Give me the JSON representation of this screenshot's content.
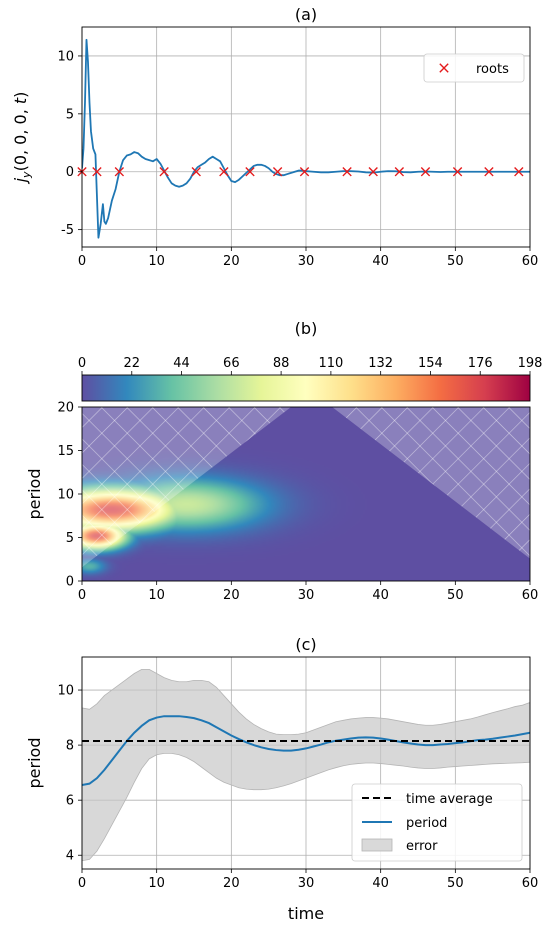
{
  "chart_data": [
    {
      "id": "a",
      "type": "line",
      "title": "(a)",
      "xlabel": "",
      "ylabel": "j_y(0, 0, 0, t)",
      "xlim": [
        0,
        60
      ],
      "ylim": [
        -6.5,
        12.5
      ],
      "xticks": [
        0,
        10,
        20,
        30,
        40,
        50,
        60
      ],
      "yticks": [
        -5,
        0,
        5,
        10
      ],
      "grid": true,
      "legend": {
        "position": "top-right",
        "entries": [
          {
            "label": "roots",
            "marker": "x",
            "color": "#e41a1c"
          }
        ]
      },
      "series": [
        {
          "color": "#1f77b4",
          "x": [
            0,
            0.2,
            0.4,
            0.6,
            0.8,
            1.0,
            1.2,
            1.5,
            1.8,
            2.2,
            2.5,
            2.8,
            3.0,
            3.2,
            3.5,
            4.0,
            4.5,
            5.0,
            5.5,
            6.0,
            6.5,
            7.0,
            7.5,
            8.0,
            8.5,
            9.0,
            9.5,
            10.0,
            10.5,
            11.0,
            11.5,
            12.0,
            12.5,
            13.0,
            13.5,
            14.0,
            14.5,
            15.0,
            15.5,
            16.0,
            16.5,
            17.0,
            17.5,
            18.0,
            18.5,
            19.0,
            19.5,
            20.0,
            20.5,
            21.0,
            21.5,
            22.0,
            22.5,
            23.0,
            23.5,
            24.0,
            24.5,
            25.0,
            25.5,
            26.0,
            26.5,
            27.0,
            27.5,
            28.0,
            28.5,
            29.0,
            29.5,
            30.0,
            31.0,
            32.0,
            33.0,
            34.0,
            35.0,
            36.0,
            37.0,
            38.0,
            39.0,
            40.0,
            41.0,
            42.0,
            43.0,
            44.0,
            45.0,
            46.0,
            47.0,
            48.0,
            49.0,
            50.0,
            51.0,
            52.0,
            53.0,
            54.0,
            55.0,
            56.0,
            57.0,
            58.0,
            59.0,
            60.0
          ],
          "y": [
            0.3,
            2.0,
            6.0,
            11.4,
            9.5,
            6.0,
            3.5,
            2.0,
            1.5,
            -5.7,
            -4.5,
            -2.8,
            -4.3,
            -4.5,
            -4.0,
            -2.5,
            -1.5,
            0.0,
            1.0,
            1.4,
            1.5,
            1.7,
            1.6,
            1.3,
            1.1,
            1.0,
            0.9,
            1.1,
            0.7,
            0.1,
            -0.5,
            -1.0,
            -1.2,
            -1.3,
            -1.2,
            -1.0,
            -0.6,
            0.0,
            0.4,
            0.6,
            0.8,
            1.1,
            1.3,
            1.1,
            0.9,
            0.3,
            -0.3,
            -0.8,
            -0.9,
            -0.7,
            -0.4,
            -0.1,
            0.2,
            0.5,
            0.6,
            0.6,
            0.5,
            0.3,
            0.0,
            -0.2,
            -0.3,
            -0.3,
            -0.2,
            -0.1,
            0.0,
            0.1,
            0.1,
            0.05,
            0.0,
            -0.05,
            -0.05,
            0.0,
            0.05,
            0.05,
            0.02,
            -0.05,
            -0.08,
            0.0,
            0.05,
            0.04,
            -0.03,
            -0.05,
            0.0,
            0.02,
            0.0,
            -0.02,
            0.0,
            0.0,
            0.0,
            0.0,
            0.0,
            0.0,
            0.0,
            0.0,
            0.0,
            0.0,
            0.0,
            0.0
          ]
        }
      ],
      "roots": [
        0,
        2.0,
        5.0,
        11.0,
        15.3,
        19.0,
        22.5,
        26.2,
        29.8,
        35.5,
        39.0,
        42.5,
        46.0,
        50.3,
        54.5,
        58.5
      ]
    },
    {
      "id": "b",
      "type": "heatmap",
      "title": "(b)",
      "xlabel": "",
      "ylabel": "period",
      "xlim": [
        0,
        60
      ],
      "ylim": [
        0,
        20
      ],
      "xticks": [
        0,
        10,
        20,
        30,
        40,
        50,
        60
      ],
      "yticks": [
        0,
        5,
        10,
        15,
        20
      ],
      "colorbar": {
        "ticks": [
          0,
          22,
          44,
          66,
          88,
          110,
          132,
          154,
          176,
          198
        ],
        "range": [
          0,
          198
        ],
        "colormap": "Spectral_r",
        "colors": [
          "#5e4fa2",
          "#3288bd",
          "#66c2a5",
          "#abdda4",
          "#e6f598",
          "#ffffbf",
          "#fee08b",
          "#fdae61",
          "#f46d43",
          "#d53e4f",
          "#9e0142"
        ]
      },
      "blobs": [
        {
          "x": 4.0,
          "y": 8.2,
          "sx": 6.0,
          "sy": 1.6,
          "value": 175
        },
        {
          "x": 2.0,
          "y": 5.2,
          "sx": 2.6,
          "sy": 1.0,
          "value": 175
        },
        {
          "x": 14.0,
          "y": 8.8,
          "sx": 7.0,
          "sy": 2.0,
          "value": 70
        },
        {
          "x": 9.0,
          "y": 6.7,
          "sx": 3.0,
          "sy": 0.8,
          "value": 40
        },
        {
          "x": 1.0,
          "y": 1.7,
          "sx": 1.5,
          "sy": 0.6,
          "value": 35
        }
      ],
      "coi": {
        "hatch_left_apex_x": 28.0,
        "hatch_right_apex_x": 33.5,
        "hatch_slope_left": 1.52,
        "hatch_slope_right": 1.52
      }
    },
    {
      "id": "c",
      "type": "line",
      "title": "(c)",
      "xlabel": "time",
      "ylabel": "period",
      "xlim": [
        0,
        60
      ],
      "ylim": [
        3.5,
        11.2
      ],
      "xticks": [
        0,
        10,
        20,
        30,
        40,
        50,
        60
      ],
      "yticks": [
        4,
        6,
        8,
        10
      ],
      "grid": true,
      "legend": {
        "position": "bottom-right",
        "entries": [
          {
            "label": "time average",
            "style": "dashed",
            "color": "#000000"
          },
          {
            "label": "period",
            "style": "line",
            "color": "#1f77b4"
          },
          {
            "label": "error",
            "style": "patch",
            "color": "#d9d9d9"
          }
        ]
      },
      "time_average": 8.15,
      "series": [
        {
          "name": "period",
          "color": "#1f77b4",
          "x": [
            0,
            1,
            2,
            3,
            4,
            5,
            6,
            7,
            8,
            9,
            10,
            11,
            12,
            13,
            14,
            15,
            16,
            17,
            18,
            19,
            20,
            21,
            22,
            23,
            24,
            25,
            26,
            27,
            28,
            29,
            30,
            31,
            32,
            33,
            34,
            35,
            36,
            37,
            38,
            39,
            40,
            41,
            42,
            43,
            44,
            45,
            46,
            47,
            48,
            49,
            50,
            51,
            52,
            53,
            54,
            55,
            56,
            57,
            58,
            59,
            60
          ],
          "y": [
            6.55,
            6.6,
            6.8,
            7.1,
            7.45,
            7.8,
            8.15,
            8.45,
            8.7,
            8.9,
            9.0,
            9.05,
            9.05,
            9.05,
            9.02,
            8.98,
            8.9,
            8.8,
            8.65,
            8.5,
            8.35,
            8.22,
            8.1,
            8.0,
            7.92,
            7.86,
            7.82,
            7.8,
            7.8,
            7.83,
            7.88,
            7.95,
            8.02,
            8.1,
            8.16,
            8.2,
            8.24,
            8.27,
            8.28,
            8.27,
            8.24,
            8.2,
            8.15,
            8.1,
            8.06,
            8.02,
            8.0,
            8.0,
            8.02,
            8.04,
            8.07,
            8.1,
            8.14,
            8.18,
            8.2,
            8.23,
            8.27,
            8.31,
            8.35,
            8.4,
            8.45
          ]
        }
      ],
      "error_band": {
        "x": [
          0,
          1,
          2,
          3,
          4,
          5,
          6,
          7,
          8,
          9,
          10,
          11,
          12,
          13,
          14,
          15,
          16,
          17,
          18,
          19,
          20,
          21,
          22,
          23,
          24,
          25,
          26,
          27,
          28,
          29,
          30,
          31,
          32,
          33,
          34,
          35,
          36,
          37,
          38,
          39,
          40,
          41,
          42,
          43,
          44,
          45,
          46,
          47,
          48,
          49,
          50,
          51,
          52,
          53,
          54,
          55,
          56,
          57,
          58,
          59,
          60
        ],
        "upper": [
          9.35,
          9.3,
          9.5,
          9.8,
          10.0,
          10.2,
          10.4,
          10.6,
          10.75,
          10.75,
          10.6,
          10.45,
          10.35,
          10.3,
          10.3,
          10.35,
          10.35,
          10.3,
          10.1,
          9.8,
          9.5,
          9.2,
          8.95,
          8.75,
          8.6,
          8.48,
          8.4,
          8.38,
          8.38,
          8.4,
          8.45,
          8.55,
          8.65,
          8.75,
          8.85,
          8.9,
          8.95,
          8.98,
          9.0,
          9.0,
          8.98,
          8.95,
          8.9,
          8.85,
          8.8,
          8.75,
          8.72,
          8.72,
          8.75,
          8.8,
          8.85,
          8.9,
          8.95,
          9.02,
          9.1,
          9.18,
          9.25,
          9.32,
          9.4,
          9.45,
          9.55
        ],
        "lower": [
          3.8,
          3.85,
          4.15,
          4.6,
          5.1,
          5.6,
          6.1,
          6.65,
          7.15,
          7.5,
          7.65,
          7.7,
          7.7,
          7.65,
          7.55,
          7.4,
          7.2,
          7.0,
          6.8,
          6.65,
          6.55,
          6.45,
          6.4,
          6.38,
          6.38,
          6.4,
          6.45,
          6.52,
          6.6,
          6.7,
          6.8,
          6.9,
          7.0,
          7.1,
          7.18,
          7.25,
          7.3,
          7.33,
          7.35,
          7.35,
          7.33,
          7.3,
          7.27,
          7.24,
          7.2,
          7.17,
          7.15,
          7.15,
          7.17,
          7.2,
          7.22,
          7.24,
          7.26,
          7.28,
          7.3,
          7.32,
          7.33,
          7.34,
          7.35,
          7.36,
          7.38
        ]
      }
    }
  ]
}
